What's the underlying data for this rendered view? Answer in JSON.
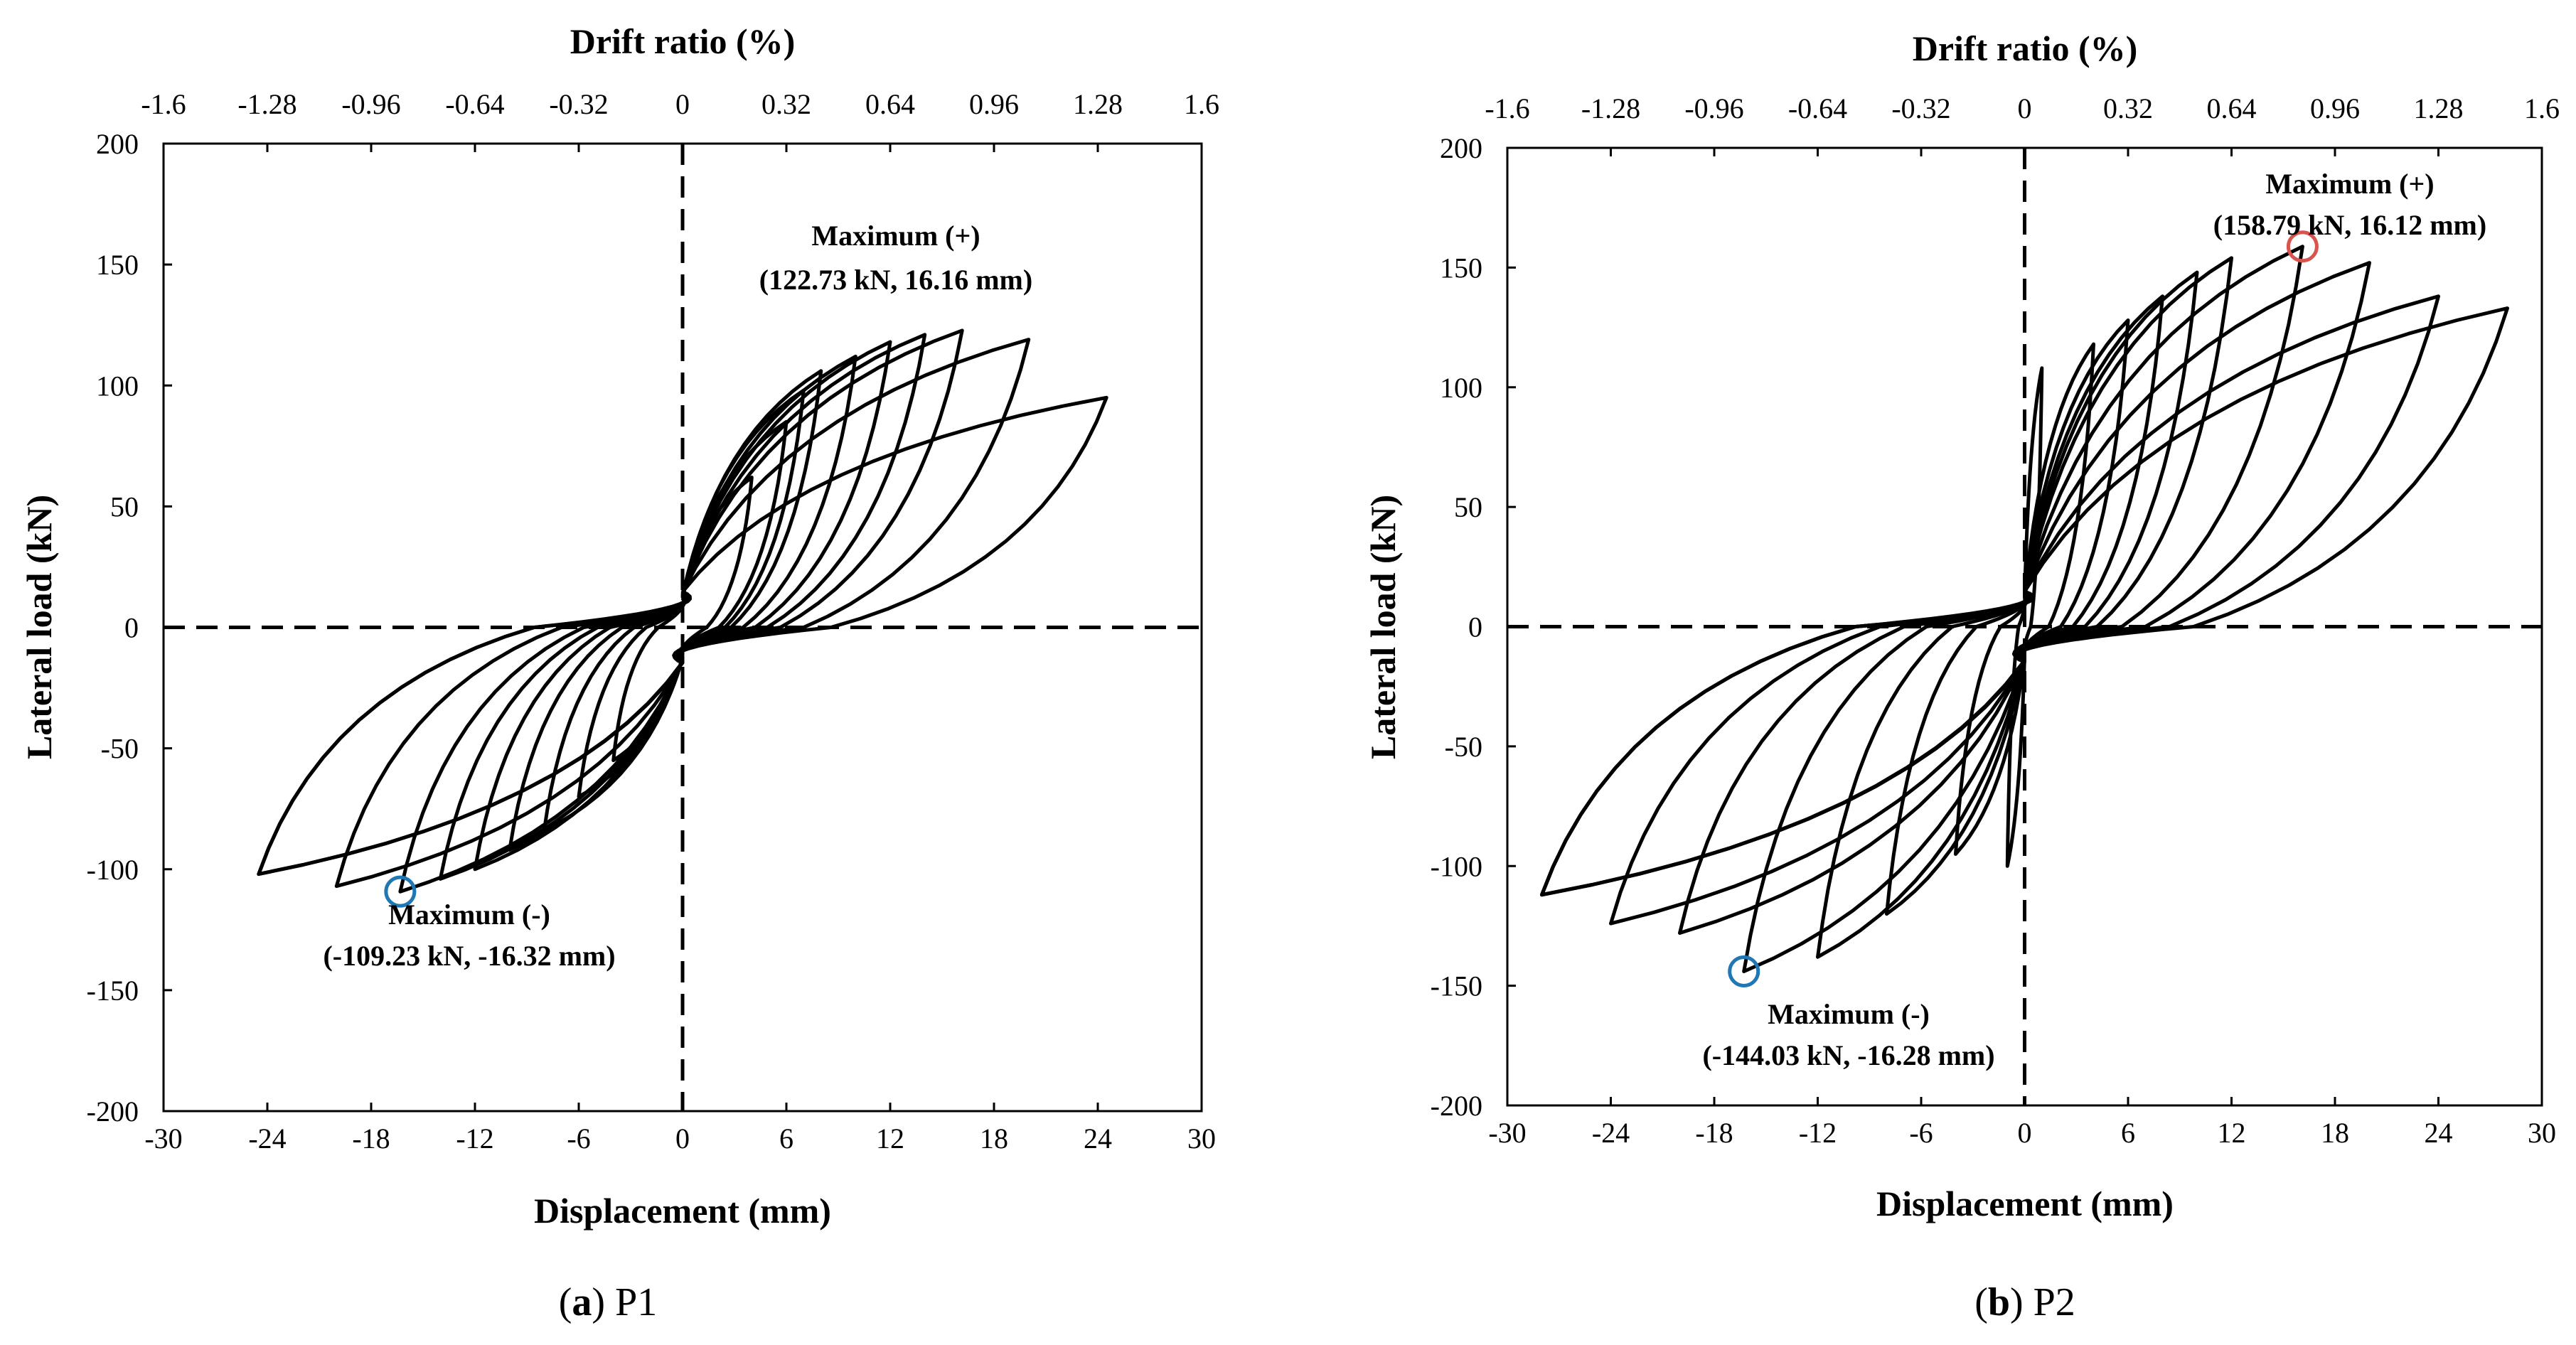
{
  "chart_data": [
    {
      "type": "line",
      "caption_letter": "a",
      "caption_text": "P1",
      "xlabel": "Displacement (mm)",
      "ylabel": "Lateral load (kN)",
      "x2label": "Drift ratio (%)",
      "xlim": [
        -30,
        30
      ],
      "ylim": [
        -200,
        200
      ],
      "x2lim": [
        -1.6,
        1.6
      ],
      "xticks": [
        "-30",
        "-24",
        "-18",
        "-12",
        "-6",
        "0",
        "6",
        "12",
        "18",
        "24",
        "30"
      ],
      "xtick_values": [
        -30,
        -24,
        -18,
        -12,
        -6,
        0,
        6,
        12,
        18,
        24,
        30
      ],
      "yticks": [
        "200",
        "150",
        "100",
        "50",
        "0",
        "-50",
        "-100",
        "-150",
        "-200"
      ],
      "ytick_values": [
        200,
        150,
        100,
        50,
        0,
        -50,
        -100,
        -150,
        -200
      ],
      "x2ticks": [
        "-1.6",
        "-1.28",
        "-0.96",
        "-0.64",
        "-0.32",
        "0",
        "0.32",
        "0.64",
        "0.96",
        "1.28",
        "1.6"
      ],
      "x2tick_values": [
        -1.6,
        -1.28,
        -0.96,
        -0.64,
        -0.32,
        0,
        0.32,
        0.64,
        0.96,
        1.28,
        1.6
      ],
      "peaks_positive": [
        [
          4,
          62
        ],
        [
          6,
          85
        ],
        [
          7,
          98
        ],
        [
          8,
          106
        ],
        [
          10,
          112
        ],
        [
          12,
          118
        ],
        [
          14,
          121
        ],
        [
          16.16,
          122.73
        ],
        [
          20,
          119
        ],
        [
          24.5,
          95
        ]
      ],
      "peaks_negative": [
        [
          -4,
          -55
        ],
        [
          -6,
          -70
        ],
        [
          -8,
          -84
        ],
        [
          -10,
          -92
        ],
        [
          -12,
          -100
        ],
        [
          -14,
          -104
        ],
        [
          -16.32,
          -109.23
        ],
        [
          -20,
          -107
        ],
        [
          -24.5,
          -102
        ]
      ],
      "max_positive": {
        "x": 16.16,
        "y": 122.73,
        "label": "Maximum (+)",
        "value": "(122.73 kN, 16.16 mm)",
        "marker": false
      },
      "max_negative": {
        "x": -16.32,
        "y": -109.23,
        "label": "Maximum (-)",
        "value": "(-109.23 kN, -16.32 mm)",
        "marker": true,
        "marker_color": "#1f77b4"
      }
    },
    {
      "type": "line",
      "caption_letter": "b",
      "caption_text": "P2",
      "xlabel": "Displacement (mm)",
      "ylabel": "Lateral load (kN)",
      "x2label": "Drift ratio (%)",
      "xlim": [
        -30,
        30
      ],
      "ylim": [
        -200,
        200
      ],
      "x2lim": [
        -1.6,
        1.6
      ],
      "xticks": [
        "-30",
        "-24",
        "-18",
        "-12",
        "-6",
        "0",
        "6",
        "12",
        "18",
        "24",
        "30"
      ],
      "xtick_values": [
        -30,
        -24,
        -18,
        -12,
        -6,
        0,
        6,
        12,
        18,
        24,
        30
      ],
      "yticks": [
        "200",
        "150",
        "100",
        "50",
        "0",
        "-50",
        "-100",
        "-150",
        "-200"
      ],
      "ytick_values": [
        200,
        150,
        100,
        50,
        0,
        -50,
        -100,
        -150,
        -200
      ],
      "x2ticks": [
        "-1.6",
        "-1.28",
        "-0.96",
        "-0.64",
        "-0.32",
        "0",
        "0.32",
        "0.64",
        "0.96",
        "1.28",
        "1.6"
      ],
      "x2tick_values": [
        -1.6,
        -1.28,
        -0.96,
        -0.64,
        -0.32,
        0,
        0.32,
        0.64,
        0.96,
        1.28,
        1.6
      ],
      "peaks_positive": [
        [
          1,
          108
        ],
        [
          4,
          118
        ],
        [
          6,
          128
        ],
        [
          8,
          138
        ],
        [
          10,
          148
        ],
        [
          12,
          154
        ],
        [
          16.12,
          158.79
        ],
        [
          20,
          152
        ],
        [
          24,
          138
        ],
        [
          28,
          133
        ]
      ],
      "peaks_negative": [
        [
          -1,
          -100
        ],
        [
          -4,
          -95
        ],
        [
          -8,
          -120
        ],
        [
          -12,
          -138
        ],
        [
          -16.28,
          -144.03
        ],
        [
          -20,
          -128
        ],
        [
          -24,
          -124
        ],
        [
          -28,
          -112
        ]
      ],
      "max_positive": {
        "x": 16.12,
        "y": 158.79,
        "label": "Maximum (+)",
        "value": "(158.79 kN, 16.12 mm)",
        "marker": true,
        "marker_color": "#d9534f"
      },
      "max_negative": {
        "x": -16.28,
        "y": -144.03,
        "label": "Maximum (-)",
        "value": "(-144.03 kN, -16.28 mm)",
        "marker": true,
        "marker_color": "#1f77b4"
      }
    }
  ]
}
